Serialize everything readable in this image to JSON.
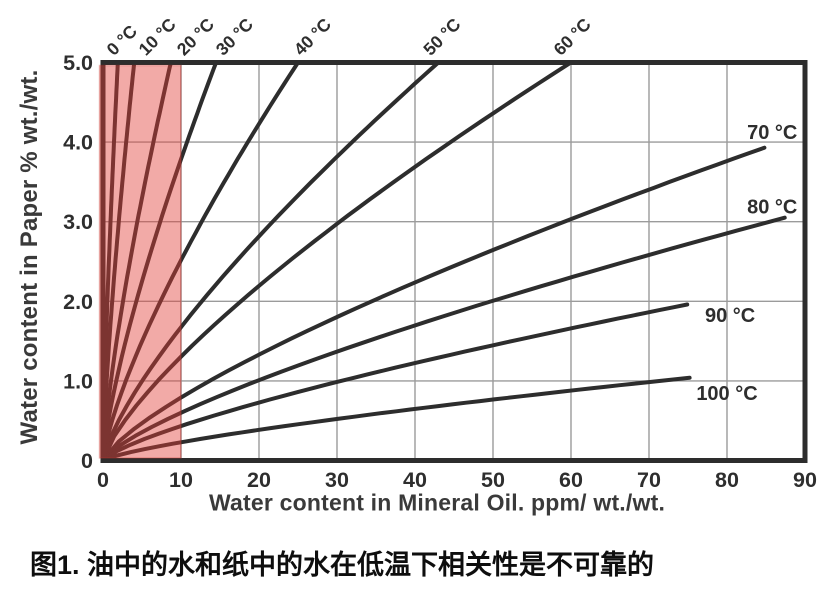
{
  "figure": {
    "caption": "图1. 油中的水和纸中的水在低温下相关性是不可靠的"
  },
  "colors": {
    "curve": "#2d2d2d",
    "frame": "#2d2d2d",
    "grid": "#9b9b9b",
    "tick_text": "#2e2e2e",
    "axis_title_text": "#3a3a3a",
    "highlight_fill": "#e23e36",
    "highlight_edge": "#c4312a"
  },
  "chart_data": {
    "type": "line",
    "xlabel": "Water content in Mineral Oil. ppm/ wt./wt.",
    "ylabel": "Water content in Paper % wt./wt.",
    "xlim": [
      0,
      90
    ],
    "ylim": [
      0,
      5
    ],
    "grid": true,
    "x_ticks": [
      {
        "value": 0,
        "label": "0"
      },
      {
        "value": 10,
        "label": "10"
      },
      {
        "value": 20,
        "label": "20"
      },
      {
        "value": 30,
        "label": "30"
      },
      {
        "value": 40,
        "label": "40"
      },
      {
        "value": 50,
        "label": "50"
      },
      {
        "value": 60,
        "label": "60"
      },
      {
        "value": 70,
        "label": "70"
      },
      {
        "value": 80,
        "label": "80"
      },
      {
        "value": 90,
        "label": "90"
      }
    ],
    "y_ticks": [
      {
        "value": 0,
        "label": "0"
      },
      {
        "value": 1,
        "label": "1.0"
      },
      {
        "value": 2,
        "label": "2.0"
      },
      {
        "value": 3,
        "label": "3.0"
      },
      {
        "value": 4,
        "label": "4.0"
      },
      {
        "value": 5,
        "label": "5.0"
      }
    ],
    "curve_model": "y = end_y * (x / end_x) ^ exponent, all curves start at origin (0,0)",
    "curve_exponent": 0.75,
    "series": [
      {
        "name": "0 °C",
        "temperature_c": 0,
        "start": [
          0,
          0
        ],
        "end": [
          1.9,
          5.0
        ],
        "label_position": "top",
        "label_x": 1.4
      },
      {
        "name": "10 °C",
        "temperature_c": 10,
        "start": [
          0,
          0
        ],
        "end": [
          4.0,
          5.0
        ],
        "label_position": "top",
        "label_x": 5.5
      },
      {
        "name": "20 °C",
        "temperature_c": 20,
        "start": [
          0,
          0
        ],
        "end": [
          8.7,
          5.0
        ],
        "label_position": "top",
        "label_x": 10.4
      },
      {
        "name": "30 °C",
        "temperature_c": 30,
        "start": [
          0,
          0
        ],
        "end": [
          14.5,
          5.0
        ],
        "label_position": "top",
        "label_x": 15.4
      },
      {
        "name": "40 °C",
        "temperature_c": 40,
        "start": [
          0,
          0
        ],
        "end": [
          25.0,
          5.0
        ],
        "label_position": "top",
        "label_x": 25.4
      },
      {
        "name": "50 °C",
        "temperature_c": 50,
        "start": [
          0,
          0
        ],
        "end": [
          43.0,
          5.0
        ],
        "label_position": "top",
        "label_x": 42.0
      },
      {
        "name": "60 °C",
        "temperature_c": 60,
        "start": [
          0,
          0
        ],
        "end": [
          60.0,
          5.0
        ],
        "label_position": "top",
        "label_x": 58.7
      },
      {
        "name": "70 °C",
        "temperature_c": 70,
        "start": [
          0,
          0
        ],
        "end": [
          84.8,
          3.93
        ],
        "label_position": "right",
        "label_at": [
          85.8,
          4.13
        ]
      },
      {
        "name": "80 °C",
        "temperature_c": 80,
        "start": [
          0,
          0
        ],
        "end": [
          87.4,
          3.05
        ],
        "label_position": "right",
        "label_at": [
          85.8,
          3.19
        ]
      },
      {
        "name": "90 °C",
        "temperature_c": 90,
        "start": [
          0,
          0
        ],
        "end": [
          74.9,
          1.96
        ],
        "label_position": "right",
        "label_at": [
          80.4,
          1.83
        ]
      },
      {
        "name": "100 °C",
        "temperature_c": 100,
        "start": [
          0,
          0
        ],
        "end": [
          75.2,
          1.04
        ],
        "label_position": "right",
        "label_at": [
          80.0,
          0.85
        ]
      }
    ],
    "highlight_region": {
      "x_range": [
        0,
        10
      ],
      "opacity": 0.44
    }
  }
}
